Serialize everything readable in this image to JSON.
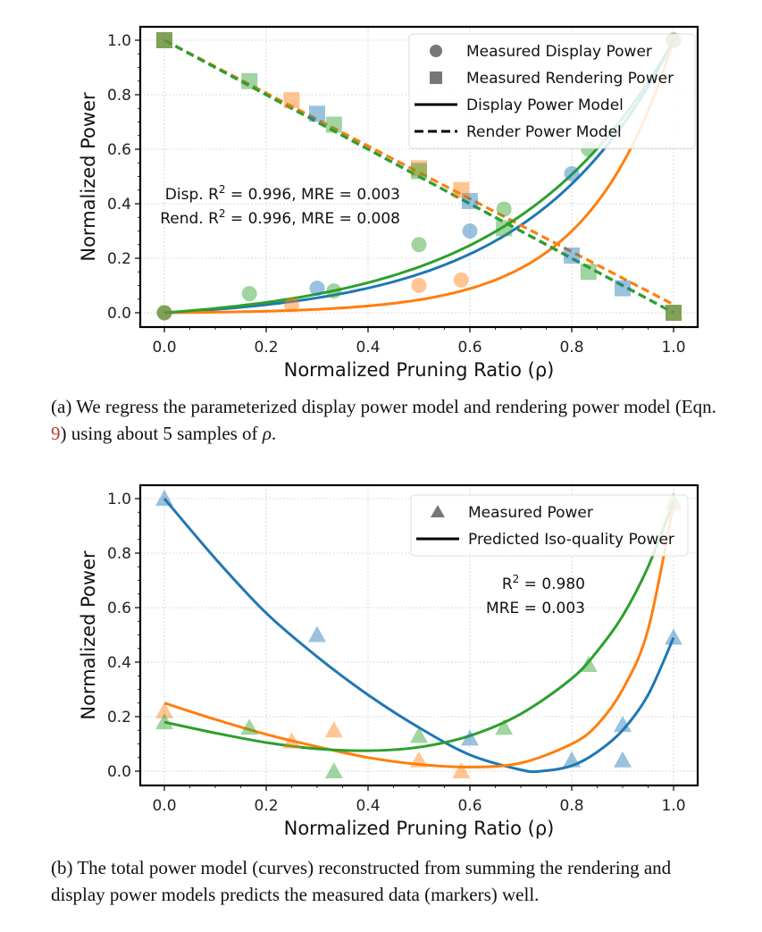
{
  "chart_data": [
    {
      "id": "a",
      "type": "scatter",
      "xlabel": "Normalized Pruning Ratio (ρ)",
      "ylabel": "Normalized Power",
      "xlim": [
        -0.04,
        1.05
      ],
      "ylim": [
        -0.05,
        1.05
      ],
      "xticks": [
        "0.0",
        "0.2",
        "0.4",
        "0.6",
        "0.8",
        "1.0"
      ],
      "yticks": [
        "0.0",
        "0.2",
        "0.4",
        "0.6",
        "0.8",
        "1.0"
      ],
      "grid": true,
      "legend_position": "top-right",
      "legend": [
        {
          "marker": "circle",
          "label": "Measured Display Power"
        },
        {
          "marker": "square",
          "label": "Measured Rendering Power"
        },
        {
          "line": "solid",
          "label": "Display Power Model"
        },
        {
          "line": "dashed",
          "label": "Render Power Model"
        }
      ],
      "annotations": [
        {
          "prefix": "Disp. R",
          "sup": "2",
          "suffix": " = 0.996, MRE = 0.003"
        },
        {
          "prefix": "Rend. R",
          "sup": "2",
          "suffix": " = 0.996, MRE = 0.008"
        }
      ],
      "series": [
        {
          "name": "blue",
          "color": "#1f77b4",
          "display_points": [
            [
              0.0,
              0.0
            ],
            [
              0.3,
              0.09
            ],
            [
              0.6,
              0.3
            ],
            [
              0.8,
              0.51
            ],
            [
              1.0,
              1.0
            ]
          ],
          "render_points": [
            [
              0.0,
              1.0
            ],
            [
              0.3,
              0.73
            ],
            [
              0.6,
              0.41
            ],
            [
              0.8,
              0.21
            ],
            [
              0.9,
              0.09
            ],
            [
              1.0,
              0.0
            ]
          ],
          "display_model": {
            "type": "exp",
            "a": 0.0,
            "k": 3.6,
            "x": [
              0,
              1
            ]
          },
          "render_model": {
            "start": 1.0,
            "end": 0.0
          }
        },
        {
          "name": "orange",
          "color": "#ff7f0e",
          "display_points": [
            [
              0.0,
              0.0
            ],
            [
              0.25,
              0.03
            ],
            [
              0.5,
              0.1
            ],
            [
              0.583,
              0.12
            ],
            [
              1.0,
              1.0
            ]
          ],
          "render_points": [
            [
              0.0,
              1.0
            ],
            [
              0.25,
              0.78
            ],
            [
              0.5,
              0.53
            ],
            [
              0.583,
              0.45
            ],
            [
              1.0,
              0.0
            ]
          ],
          "display_model": {
            "type": "exp",
            "a": 0.0,
            "k": 6.0,
            "x": [
              0,
              1
            ]
          },
          "render_model": {
            "start": 1.0,
            "end": 0.03
          }
        },
        {
          "name": "green",
          "color": "#2ca02c",
          "display_points": [
            [
              0.0,
              0.0
            ],
            [
              0.167,
              0.07
            ],
            [
              0.333,
              0.08
            ],
            [
              0.5,
              0.25
            ],
            [
              0.667,
              0.38
            ],
            [
              0.833,
              0.6
            ],
            [
              1.0,
              1.0
            ]
          ],
          "render_points": [
            [
              0.0,
              1.0
            ],
            [
              0.167,
              0.85
            ],
            [
              0.333,
              0.69
            ],
            [
              0.5,
              0.52
            ],
            [
              0.667,
              0.31
            ],
            [
              0.833,
              0.15
            ],
            [
              1.0,
              0.0
            ]
          ],
          "display_model": {
            "type": "exp",
            "a": 0.0,
            "k": 3.2,
            "x": [
              0,
              1
            ]
          },
          "render_model": {
            "start": 1.0,
            "end": 0.0
          }
        }
      ]
    },
    {
      "id": "b",
      "type": "scatter",
      "xlabel": "Normalized Pruning Ratio (ρ)",
      "ylabel": "Normalized Power",
      "xlim": [
        -0.04,
        1.05
      ],
      "ylim": [
        -0.05,
        1.05
      ],
      "xticks": [
        "0.0",
        "0.2",
        "0.4",
        "0.6",
        "0.8",
        "1.0"
      ],
      "yticks": [
        "0.0",
        "0.2",
        "0.4",
        "0.6",
        "0.8",
        "1.0"
      ],
      "grid": true,
      "legend_position": "top-right",
      "legend": [
        {
          "marker": "triangle",
          "label": "Measured Power"
        },
        {
          "line": "solid",
          "label": "Predicted Iso-quality Power"
        }
      ],
      "annotations": [
        {
          "prefix": "R",
          "sup": "2",
          "suffix": " = 0.980"
        },
        {
          "prefix": "MRE = 0.003",
          "sup": "",
          "suffix": ""
        }
      ],
      "series": [
        {
          "name": "blue",
          "color": "#1f77b4",
          "points": [
            [
              0.0,
              1.0
            ],
            [
              0.3,
              0.5
            ],
            [
              0.6,
              0.12
            ],
            [
              0.8,
              0.04
            ],
            [
              0.9,
              0.17
            ],
            [
              0.9,
              0.04
            ],
            [
              1.0,
              0.49
            ]
          ],
          "curve": [
            [
              0.0,
              1.0
            ],
            [
              0.1,
              0.78
            ],
            [
              0.2,
              0.58
            ],
            [
              0.3,
              0.42
            ],
            [
              0.4,
              0.28
            ],
            [
              0.5,
              0.16
            ],
            [
              0.6,
              0.06
            ],
            [
              0.7,
              0.005
            ],
            [
              0.74,
              0.0
            ],
            [
              0.8,
              0.02
            ],
            [
              0.85,
              0.07
            ],
            [
              0.9,
              0.15
            ],
            [
              0.95,
              0.28
            ],
            [
              1.0,
              0.49
            ]
          ]
        },
        {
          "name": "orange",
          "color": "#ff7f0e",
          "points": [
            [
              0.0,
              0.22
            ],
            [
              0.25,
              0.11
            ],
            [
              0.333,
              0.15
            ],
            [
              0.5,
              0.04
            ],
            [
              0.583,
              0.0
            ],
            [
              1.0,
              0.98
            ]
          ],
          "curve": [
            [
              0.0,
              0.25
            ],
            [
              0.1,
              0.19
            ],
            [
              0.2,
              0.135
            ],
            [
              0.3,
              0.09
            ],
            [
              0.4,
              0.05
            ],
            [
              0.5,
              0.025
            ],
            [
              0.6,
              0.015
            ],
            [
              0.7,
              0.03
            ],
            [
              0.8,
              0.1
            ],
            [
              0.85,
              0.17
            ],
            [
              0.9,
              0.3
            ],
            [
              0.95,
              0.52
            ],
            [
              1.0,
              0.98
            ]
          ]
        },
        {
          "name": "green",
          "color": "#2ca02c",
          "points": [
            [
              0.0,
              0.18
            ],
            [
              0.167,
              0.16
            ],
            [
              0.333,
              0.0
            ],
            [
              0.5,
              0.13
            ],
            [
              0.667,
              0.16
            ],
            [
              0.833,
              0.39
            ],
            [
              1.0,
              0.99
            ]
          ],
          "curve": [
            [
              0.0,
              0.18
            ],
            [
              0.1,
              0.14
            ],
            [
              0.2,
              0.105
            ],
            [
              0.3,
              0.082
            ],
            [
              0.4,
              0.075
            ],
            [
              0.5,
              0.088
            ],
            [
              0.6,
              0.13
            ],
            [
              0.7,
              0.21
            ],
            [
              0.8,
              0.34
            ],
            [
              0.85,
              0.44
            ],
            [
              0.9,
              0.57
            ],
            [
              0.95,
              0.75
            ],
            [
              1.0,
              0.99
            ]
          ]
        }
      ]
    }
  ],
  "captions": {
    "a_pre": "(a) We regress the parameterized display power model and rendering power model (Eqn. ",
    "a_ref": "9",
    "a_mid": ") using about 5 samples of ",
    "a_rho": "ρ",
    "a_post": ".",
    "b": "(b) The total power model (curves) reconstructed from summing the rendering and display power models predicts the measured data (markers) well."
  }
}
